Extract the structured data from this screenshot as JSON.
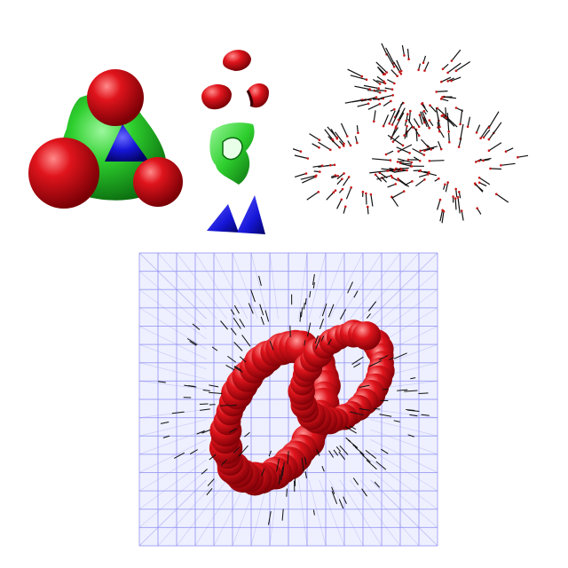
{
  "palette": {
    "sphere_red": "#e0141c",
    "sphere_red_dark": "#8c0008",
    "sphere_red_light": "#ff8a8a",
    "saddle_green": "#2ecf2e",
    "saddle_green_dark": "#0f7a12",
    "cap_blue": "#1616d8",
    "cap_blue_dark": "#050580",
    "normal_stroke": "#111111",
    "normal_tip": "#c81818",
    "grid_line": "#8c8cf0",
    "grid_fill": "#eef0ff",
    "background": "#ffffff"
  },
  "panels": [
    {
      "id": "molecular-surface",
      "icon": "molecular-surface-icon"
    },
    {
      "id": "exploded-surface-patches",
      "icon": "surface-patches-icon"
    },
    {
      "id": "surface-normals",
      "icon": "normal-vectors-icon"
    },
    {
      "id": "grid-volume",
      "icon": "voxel-grid-icon"
    }
  ]
}
